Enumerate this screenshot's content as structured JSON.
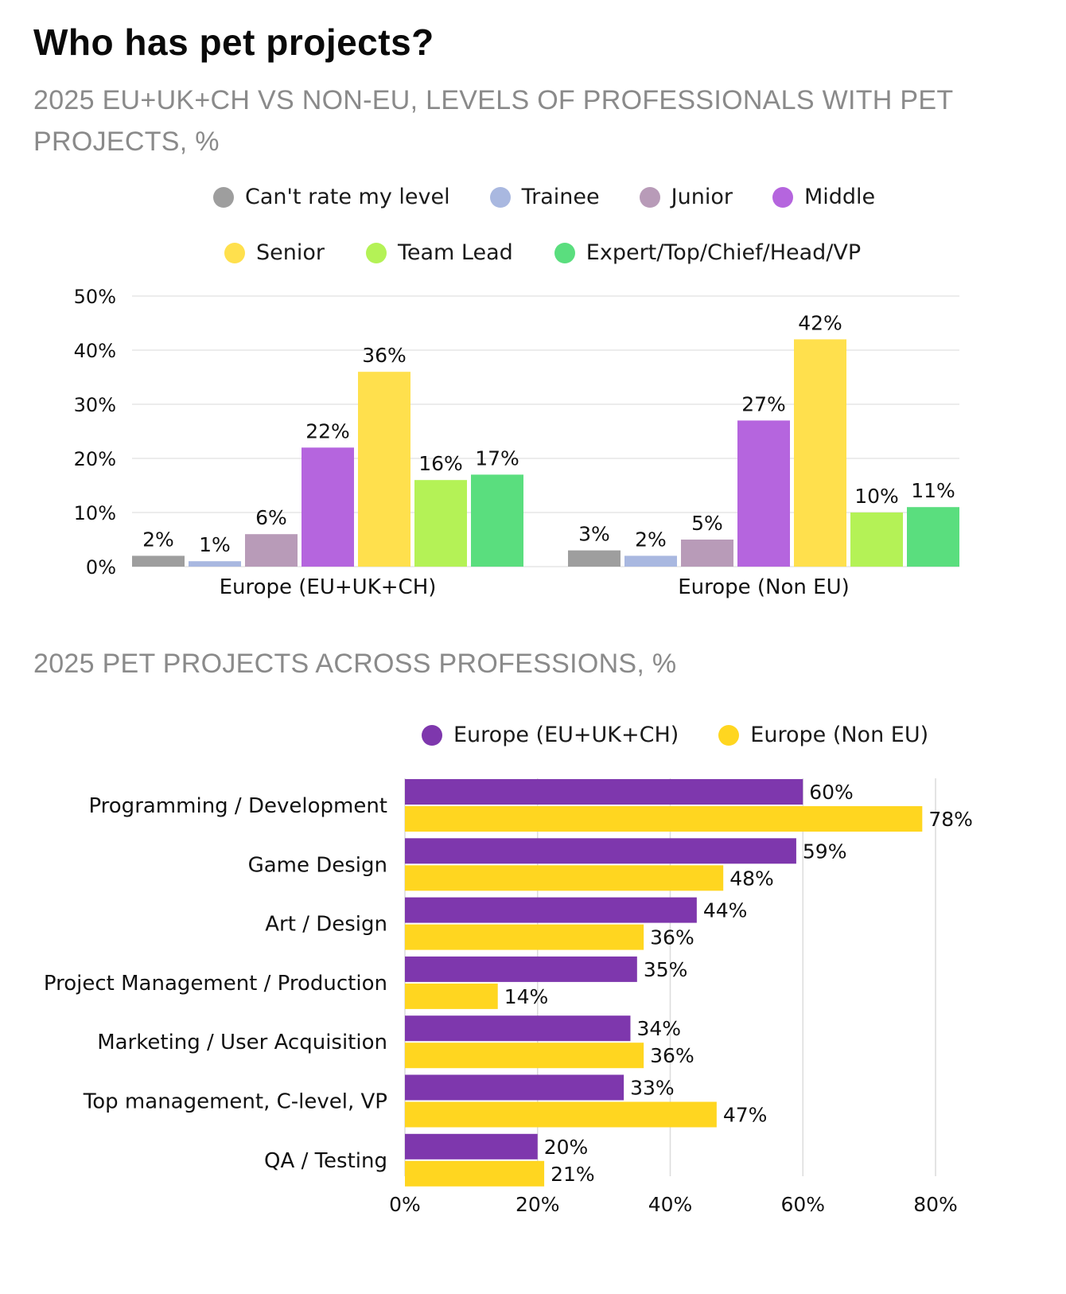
{
  "title": "Who has pet projects?",
  "chart_data": [
    {
      "type": "bar",
      "title": "2025 EU+UK+CH VS NON-EU, LEVELS OF PROFESSIONALS WITH PET PROJECTS, %",
      "categories": [
        "Europe (EU+UK+CH)",
        "Europe (Non EU)"
      ],
      "series": [
        {
          "name": "Can't rate my level",
          "color": "#9e9e9e",
          "values": [
            2,
            3
          ]
        },
        {
          "name": "Trainee",
          "color": "#a9b8e0",
          "values": [
            1,
            2
          ]
        },
        {
          "name": "Junior",
          "color": "#b89bb8",
          "values": [
            6,
            5
          ]
        },
        {
          "name": "Middle",
          "color": "#b565de",
          "values": [
            22,
            27
          ]
        },
        {
          "name": "Senior",
          "color": "#ffe04d",
          "values": [
            36,
            42
          ]
        },
        {
          "name": "Team Lead",
          "color": "#b4f256",
          "values": [
            16,
            10
          ]
        },
        {
          "name": "Expert/Top/Chief/Head/VP",
          "color": "#5ade7e",
          "values": [
            17,
            11
          ]
        }
      ],
      "ylim": [
        0,
        50
      ],
      "yticks": [
        "0%",
        "10%",
        "20%",
        "30%",
        "40%",
        "50%"
      ],
      "value_suffix": "%",
      "legend_position": "top"
    },
    {
      "type": "bar",
      "orientation": "horizontal",
      "title": "2025 PET PROJECTS ACROSS PROFESSIONS, %",
      "categories": [
        "Programming / Development",
        "Game Design",
        "Art / Design",
        "Project Management / Production",
        "Marketing / User Acquisition",
        "Top management, C-level, VP",
        "QA / Testing"
      ],
      "series": [
        {
          "name": "Europe (EU+UK+CH)",
          "color": "#7e37ad",
          "values": [
            60,
            59,
            44,
            35,
            34,
            33,
            20
          ]
        },
        {
          "name": "Europe (Non EU)",
          "color": "#ffd620",
          "values": [
            78,
            48,
            36,
            14,
            36,
            47,
            21
          ]
        }
      ],
      "xlim": [
        0,
        80
      ],
      "xticks": [
        "0%",
        "20%",
        "40%",
        "60%",
        "80%"
      ],
      "value_suffix": "%",
      "legend_position": "top"
    }
  ]
}
